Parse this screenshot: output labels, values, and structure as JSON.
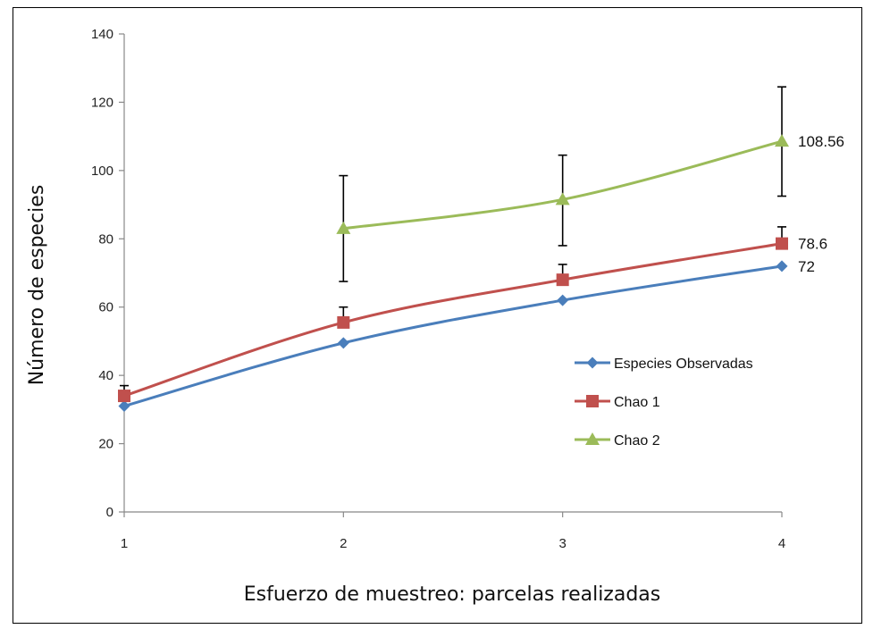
{
  "chart_data": {
    "type": "line",
    "title": "",
    "xlabel": "Esfuerzo de muestreo: parcelas realizadas",
    "ylabel": "Número de especies",
    "x": [
      1,
      2,
      3,
      4
    ],
    "xlim": [
      1,
      4
    ],
    "ylim": [
      0,
      140
    ],
    "yticks": [
      0,
      20,
      40,
      60,
      80,
      100,
      120,
      140
    ],
    "xticks": [
      "1",
      "2",
      "3",
      "4"
    ],
    "grid": false,
    "legend_position": "right",
    "series": [
      {
        "name": "Especies Observadas",
        "color": "#4a7ebb",
        "marker": "diamond",
        "x": [
          1,
          2,
          3,
          4
        ],
        "values": [
          31,
          49.5,
          62,
          72
        ],
        "end_label": "72"
      },
      {
        "name": "Chao 1",
        "color": "#c0504d",
        "marker": "square",
        "x": [
          1,
          2,
          3,
          4
        ],
        "values": [
          34,
          55.5,
          68,
          78.6
        ],
        "error_low": [
          null,
          null,
          null,
          null
        ],
        "error_high": [
          37,
          60,
          72.5,
          83.5
        ],
        "end_label": "78.6"
      },
      {
        "name": "Chao 2",
        "color": "#9bbb59",
        "marker": "triangle",
        "x": [
          2,
          3,
          4
        ],
        "values": [
          83,
          91.5,
          108.56
        ],
        "error_low": [
          67.5,
          78,
          92.5
        ],
        "error_high": [
          98.5,
          104.5,
          124.5
        ],
        "end_label": "108.56"
      }
    ]
  }
}
